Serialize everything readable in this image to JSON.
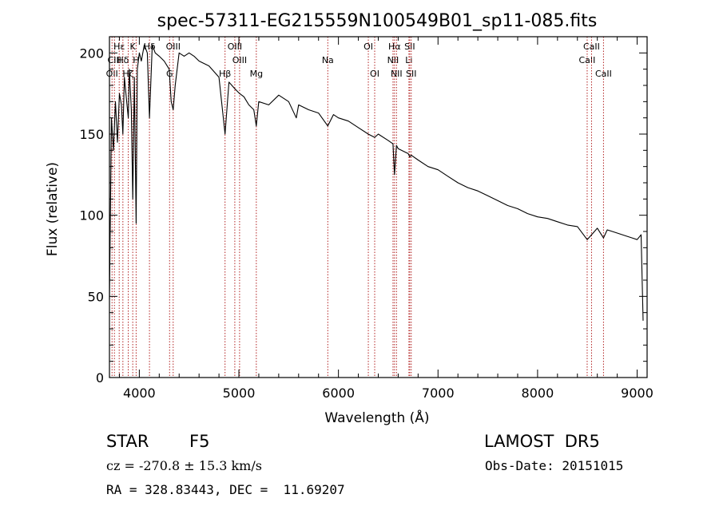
{
  "chart_data": {
    "type": "line",
    "title": "spec-57311-EG215559N100549B01_sp11-085.fits",
    "xlabel": "Wavelength (Å)",
    "ylabel": "Flux (relative)",
    "xlim": [
      3700,
      9100
    ],
    "ylim": [
      0,
      210
    ],
    "xticks": [
      4000,
      5000,
      6000,
      7000,
      8000,
      9000
    ],
    "yticks": [
      0,
      50,
      100,
      150,
      200
    ],
    "grid": false,
    "line_color": "#000000",
    "marker_color": "#b22222",
    "series": [
      {
        "x": [
          3700,
          3720,
          3740,
          3760,
          3780,
          3800,
          3820,
          3835,
          3850,
          3870,
          3889,
          3900,
          3920,
          3934,
          3950,
          3968,
          3980,
          4000,
          4020,
          4050,
          4080,
          4102,
          4130,
          4160,
          4200,
          4250,
          4300,
          4320,
          4340,
          4360,
          4400,
          4450,
          4500,
          4550,
          4600,
          4700,
          4800,
          4861,
          4900,
          4959,
          5007,
          5050,
          5100,
          5150,
          5175,
          5200,
          5300,
          5400,
          5500,
          5577,
          5600,
          5700,
          5800,
          5893,
          5950,
          6000,
          6100,
          6200,
          6300,
          6364,
          6400,
          6500,
          6548,
          6563,
          6583,
          6600,
          6700,
          6716,
          6731,
          6800,
          6900,
          7000,
          7100,
          7200,
          7300,
          7400,
          7500,
          7600,
          7700,
          7800,
          7900,
          8000,
          8100,
          8200,
          8300,
          8400,
          8498,
          8542,
          8600,
          8662,
          8700,
          8800,
          8900,
          8950,
          9000,
          9040,
          9060
        ],
        "y": [
          48,
          160,
          140,
          170,
          145,
          175,
          168,
          150,
          185,
          172,
          160,
          190,
          165,
          110,
          185,
          95,
          190,
          200,
          195,
          205,
          200,
          160,
          205,
          200,
          198,
          195,
          190,
          170,
          165,
          180,
          200,
          198,
          200,
          198,
          195,
          192,
          185,
          150,
          182,
          178,
          175,
          173,
          168,
          165,
          155,
          170,
          168,
          174,
          170,
          160,
          168,
          165,
          163,
          155,
          162,
          160,
          158,
          154,
          150,
          148,
          150,
          146,
          144,
          125,
          143,
          141,
          138,
          136,
          137,
          134,
          130,
          128,
          124,
          120,
          117,
          115,
          112,
          109,
          106,
          104,
          101,
          99,
          98,
          96,
          94,
          93,
          85,
          88,
          92,
          86,
          91,
          89,
          87,
          86,
          85,
          88,
          35
        ]
      }
    ],
    "line_markers": [
      {
        "x": 3726,
        "label": "OII",
        "row": 3
      },
      {
        "x": 3750,
        "label": "CIII",
        "row": 2
      },
      {
        "x": 3798,
        "label": "Hε",
        "row": 1
      },
      {
        "x": 3835,
        "label": "Hδ",
        "row": 2
      },
      {
        "x": 3889,
        "label": "Hζ",
        "row": 3
      },
      {
        "x": 3934,
        "label": "K",
        "row": 1
      },
      {
        "x": 3968,
        "label": "H",
        "row": 2
      },
      {
        "x": 4102,
        "label": "Hδ",
        "row": 1
      },
      {
        "x": 4304,
        "label": "G",
        "row": 3
      },
      {
        "x": 4340,
        "label": "OIII",
        "row": 1
      },
      {
        "x": 4861,
        "label": "Hβ",
        "row": 3
      },
      {
        "x": 4959,
        "label": "OIII",
        "row": 1
      },
      {
        "x": 5007,
        "label": "OIII",
        "row": 2
      },
      {
        "x": 5175,
        "label": "Mg",
        "row": 3
      },
      {
        "x": 5893,
        "label": "Na",
        "row": 2
      },
      {
        "x": 6300,
        "label": "OI",
        "row": 1
      },
      {
        "x": 6364,
        "label": "OI",
        "row": 3
      },
      {
        "x": 6548,
        "label": "NII",
        "row": 2
      },
      {
        "x": 6563,
        "label": "Hα",
        "row": 1
      },
      {
        "x": 6583,
        "label": "NII",
        "row": 3
      },
      {
        "x": 6708,
        "label": "Li",
        "row": 2
      },
      {
        "x": 6716,
        "label": "SII",
        "row": 1
      },
      {
        "x": 6731,
        "label": "SII",
        "row": 3
      },
      {
        "x": 8498,
        "label": "CaII",
        "row": 2
      },
      {
        "x": 8542,
        "label": "CaII",
        "row": 1
      },
      {
        "x": 8662,
        "label": "CaII",
        "row": 3
      }
    ]
  },
  "info": {
    "object_class": "STAR",
    "subclass": "F5",
    "survey": "LAMOST  DR5",
    "cz": "cz = -270.8 ± 15.3 km/s",
    "obs_date": "Obs-Date: 20151015",
    "coords": "RA = 328.83443, DEC =  11.69207"
  }
}
